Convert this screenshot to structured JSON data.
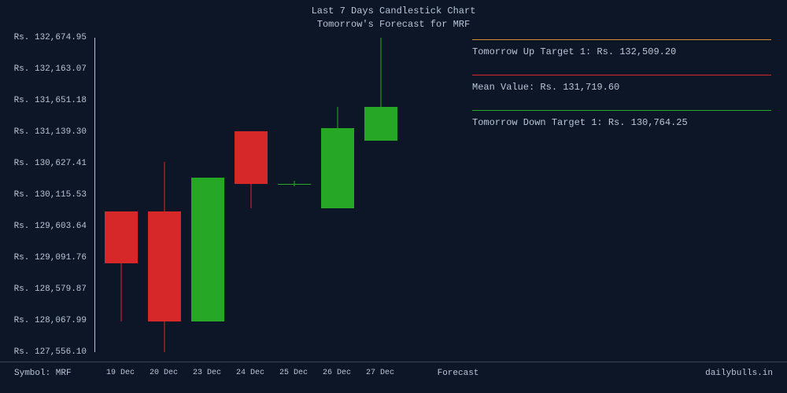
{
  "title": {
    "line1": "Last 7 Days Candlestick Chart",
    "line2": "Tomorrow's Forecast for MRF"
  },
  "chart": {
    "type": "candlestick",
    "background_color": "#0d1626",
    "text_color": "#b8c5d6",
    "up_color": "#26a826",
    "down_color": "#d62828",
    "y_axis": {
      "min": 127556.1,
      "max": 132674.95,
      "labels": [
        "Rs. 132,674.95",
        "Rs. 132,163.07",
        "Rs. 131,651.18",
        "Rs. 131,139.30",
        "Rs. 130,627.41",
        "Rs. 130,115.53",
        "Rs. 129,603.64",
        "Rs. 129,091.76",
        "Rs. 128,579.87",
        "Rs. 128,067.99",
        "Rs. 127,556.10"
      ],
      "values": [
        132674.95,
        132163.07,
        131651.18,
        131139.3,
        130627.41,
        130115.53,
        129603.64,
        129091.76,
        128579.87,
        128067.99,
        127556.1
      ]
    },
    "x_axis": {
      "labels": [
        "19 Dec",
        "20 Dec",
        "23 Dec",
        "24 Dec",
        "25 Dec",
        "26 Dec",
        "27 Dec",
        "Forecast"
      ]
    },
    "candles": [
      {
        "date": "19 Dec",
        "open": 129850,
        "high": 129850,
        "low": 128050,
        "close": 129000,
        "dir": "down"
      },
      {
        "date": "20 Dec",
        "open": 129850,
        "high": 130650,
        "low": 127556,
        "close": 128050,
        "dir": "down"
      },
      {
        "date": "23 Dec",
        "open": 128050,
        "high": 130400,
        "low": 128050,
        "close": 130400,
        "dir": "up"
      },
      {
        "date": "24 Dec",
        "open": 131150,
        "high": 131150,
        "low": 129900,
        "close": 130300,
        "dir": "down"
      },
      {
        "date": "25 Dec",
        "open": 130300,
        "high": 130350,
        "low": 130250,
        "close": 130300,
        "dir": "up"
      },
      {
        "date": "26 Dec",
        "open": 129900,
        "high": 131550,
        "low": 129900,
        "close": 131200,
        "dir": "up"
      },
      {
        "date": "27 Dec",
        "open": 131000,
        "high": 132675,
        "low": 131000,
        "close": 131550,
        "dir": "up"
      }
    ]
  },
  "legend": {
    "items": [
      {
        "label": "Tomorrow Up Target 1: Rs. 132,509.20",
        "color": "#d68f2a"
      },
      {
        "label": "Mean Value: Rs. 131,719.60",
        "color": "#d62828"
      },
      {
        "label": "Tomorrow Down Target 1: Rs. 130,764.25",
        "color": "#26a826"
      }
    ]
  },
  "footer": {
    "symbol": "Symbol: MRF",
    "forecast_label": "Forecast",
    "watermark": "dailybulls.in"
  }
}
